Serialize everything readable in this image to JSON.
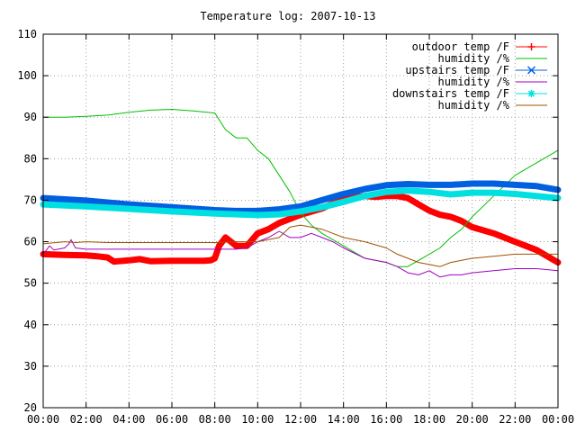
{
  "chart_data": {
    "type": "line",
    "title": "Temperature log: 2007-10-13",
    "xlabel": "",
    "ylabel": "",
    "x_ticks": [
      "00:00",
      "02:00",
      "04:00",
      "06:00",
      "08:00",
      "10:00",
      "12:00",
      "14:00",
      "16:00",
      "18:00",
      "20:00",
      "22:00",
      "00:00"
    ],
    "y_ticks": [
      20,
      30,
      40,
      50,
      60,
      70,
      80,
      90,
      100,
      110
    ],
    "xlim": [
      0,
      24
    ],
    "ylim": [
      20,
      110
    ],
    "grid": true,
    "legend_position": "top-right",
    "series": [
      {
        "name": "outdoor temp /F",
        "color": "#ff0000",
        "marker": "plus",
        "weight": "heavy",
        "x": [
          0,
          1,
          2,
          2.5,
          3,
          3.3,
          4,
          4.5,
          5,
          6,
          7,
          7.5,
          7.8,
          8,
          8.2,
          8.5,
          9,
          9.5,
          10,
          10.5,
          11,
          11.5,
          12,
          13,
          14,
          15,
          15.5,
          16,
          16.5,
          17,
          17.5,
          18,
          18.5,
          19,
          19.5,
          20,
          21,
          22,
          23,
          24
        ],
        "y": [
          57,
          56.8,
          56.7,
          56.5,
          56.2,
          55.2,
          55.5,
          55.8,
          55.3,
          55.4,
          55.4,
          55.4,
          55.5,
          56,
          59,
          61,
          59,
          59,
          62,
          63,
          64.5,
          65.5,
          66.5,
          68,
          70.5,
          71,
          70.8,
          71,
          71,
          70.5,
          69,
          67.5,
          66.5,
          66,
          65,
          63.5,
          62,
          60,
          58,
          55
        ]
      },
      {
        "name": "humidity /%",
        "color": "#00c000",
        "marker": "none",
        "weight": "thin",
        "x": [
          0,
          1,
          2,
          3,
          4,
          5,
          6,
          7,
          8,
          8.5,
          9,
          9.5,
          10,
          10.5,
          11,
          11.5,
          12,
          12.5,
          13,
          14,
          15,
          16,
          16.5,
          17,
          17.5,
          18,
          18.5,
          19,
          19.5,
          20,
          21,
          22,
          23,
          24
        ],
        "y": [
          90,
          90,
          90.2,
          90.5,
          91.2,
          91.7,
          91.9,
          91.5,
          91,
          87,
          85,
          85,
          82,
          80,
          76,
          72,
          67,
          64,
          62,
          59,
          56,
          55,
          54,
          54,
          55.5,
          57,
          58.5,
          61,
          63,
          66,
          71,
          76,
          79,
          82
        ]
      },
      {
        "name": "upstairs temp /F",
        "color": "#0060e0",
        "marker": "cross",
        "weight": "heavy",
        "x": [
          0,
          2,
          4,
          6,
          8,
          9,
          10,
          11,
          12,
          13,
          14,
          15,
          16,
          17,
          18,
          19,
          20,
          21,
          22,
          23,
          24
        ],
        "y": [
          70.5,
          69.9,
          69,
          68.3,
          67.6,
          67.4,
          67.4,
          67.8,
          68.5,
          70,
          71.5,
          72.7,
          73.6,
          73.9,
          73.7,
          73.7,
          74,
          74,
          73.7,
          73.4,
          72.5
        ]
      },
      {
        "name": "humidity /%",
        "color": "#a000c0",
        "marker": "none",
        "weight": "thin",
        "x": [
          0,
          0.3,
          0.5,
          1,
          1.2,
          1.3,
          1.5,
          2,
          3,
          4,
          5,
          6,
          7,
          8,
          9,
          9.5,
          10,
          10.5,
          11,
          11.5,
          12,
          12.5,
          13,
          13.5,
          14,
          15,
          16,
          16.5,
          17,
          17.5,
          18,
          18.5,
          19,
          19.5,
          20,
          21,
          22,
          23,
          24
        ],
        "y": [
          57,
          59,
          58,
          58.5,
          59.5,
          60.5,
          58.5,
          58.2,
          58.2,
          58.2,
          58.2,
          58.2,
          58.2,
          58.2,
          58.2,
          58.5,
          60,
          61,
          62.5,
          61,
          61,
          62,
          61,
          60,
          58.5,
          56,
          55,
          54,
          52.5,
          52,
          53,
          51.5,
          52,
          52,
          52.5,
          53,
          53.5,
          53.5,
          53
        ]
      },
      {
        "name": "downstairs temp /F",
        "color": "#00e0e0",
        "marker": "star",
        "weight": "heavy",
        "x": [
          0,
          2,
          4,
          6,
          8,
          9,
          10,
          11,
          12,
          13,
          14,
          15,
          16,
          17,
          18,
          19,
          20,
          21,
          22,
          23,
          24
        ],
        "y": [
          69,
          68.5,
          67.9,
          67.3,
          66.8,
          66.6,
          66.4,
          66.6,
          67.3,
          68.3,
          69.6,
          71,
          72,
          72.3,
          72,
          71.4,
          71.8,
          71.8,
          71.5,
          71,
          70.5
        ]
      },
      {
        "name": "humidity /%",
        "color": "#a05000",
        "marker": "none",
        "weight": "thin",
        "x": [
          0,
          1,
          1.5,
          2,
          3,
          4,
          5,
          6,
          7,
          8,
          9,
          10,
          11,
          11.5,
          12,
          12.5,
          13,
          13.5,
          14,
          15,
          16,
          16.5,
          17,
          17.5,
          18,
          18.5,
          19,
          19.5,
          20,
          21,
          22,
          23,
          24
        ],
        "y": [
          59.5,
          60,
          59.8,
          60,
          59.8,
          59.8,
          59.8,
          59.8,
          59.8,
          59.8,
          60,
          60,
          61,
          63.5,
          64,
          63.5,
          63,
          62,
          61,
          60,
          58.5,
          57,
          56,
          55,
          54.5,
          54,
          55,
          55.5,
          56,
          56.5,
          57,
          57,
          57
        ]
      }
    ]
  }
}
